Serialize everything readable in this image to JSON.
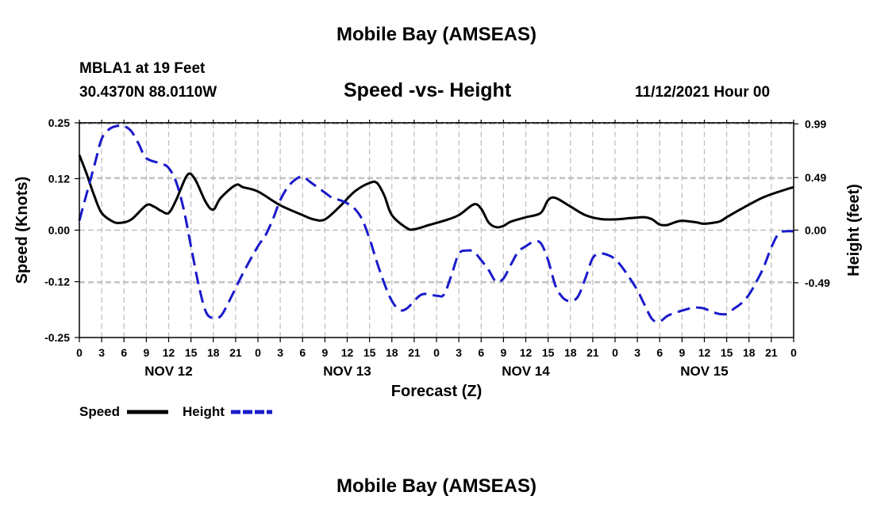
{
  "header": {
    "title": "Mobile Bay (AMSEAS)",
    "station": "MBLA1 at 19 Feet",
    "coords": "30.4370N  88.0110W",
    "subtitle": "Speed -vs- Height",
    "datetime": "11/12/2021 Hour 00"
  },
  "footer": {
    "title": "Mobile Bay (AMSEAS)"
  },
  "chart_data": {
    "type": "line",
    "title": "Speed -vs- Height",
    "xlabel": "Forecast (Z)",
    "ylabel": "Speed (Knots)",
    "y2label": "Height (feet)",
    "x_range": [
      0,
      96
    ],
    "x_hours": [
      0,
      3,
      6,
      9,
      12,
      15,
      18,
      21,
      24,
      27,
      30,
      33,
      36,
      39,
      42,
      45,
      48,
      51,
      54,
      57,
      60,
      63,
      66,
      69,
      72,
      75,
      78,
      81,
      84,
      87,
      90,
      93,
      96
    ],
    "x_tick_labels": [
      "0",
      "3",
      "6",
      "9",
      "12",
      "15",
      "18",
      "21",
      "0",
      "3",
      "6",
      "9",
      "12",
      "15",
      "18",
      "21",
      "0",
      "3",
      "6",
      "9",
      "12",
      "15",
      "18",
      "21",
      "0",
      "3",
      "6",
      "9",
      "12",
      "15",
      "18",
      "21",
      "0"
    ],
    "day_labels": [
      {
        "hour": 12,
        "label": "NOV 12"
      },
      {
        "hour": 36,
        "label": "NOV 13"
      },
      {
        "hour": 60,
        "label": "NOV 14"
      },
      {
        "hour": 84,
        "label": "NOV 15"
      }
    ],
    "ylim": [
      -0.25,
      0.25
    ],
    "y_ticks": [
      0.25,
      0.12,
      0.0,
      -0.12,
      -0.25
    ],
    "y_tick_labels": [
      "0.25",
      "0.12",
      "0.00",
      "-0.12",
      "-0.25"
    ],
    "y2lim": [
      -1.0,
      1.0
    ],
    "y2_ticks": [
      0.99,
      0.49,
      0.0,
      -0.49
    ],
    "y2_tick_labels": [
      "0.99",
      "0.49",
      "0.00",
      "-0.49"
    ],
    "grid": true,
    "legend": [
      {
        "name": "Speed",
        "color": "#000000",
        "dashed": false
      },
      {
        "name": "Height",
        "color": "#1a1acc",
        "dashed": true
      }
    ],
    "series": [
      {
        "name": "Speed",
        "axis": "left",
        "color": "#000000",
        "points": [
          [
            0,
            0.175
          ],
          [
            1,
            0.13
          ],
          [
            2,
            0.08
          ],
          [
            3,
            0.04
          ],
          [
            4.5,
            0.02
          ],
          [
            5.5,
            0.017
          ],
          [
            7,
            0.025
          ],
          [
            9,
            0.058
          ],
          [
            10,
            0.055
          ],
          [
            11,
            0.045
          ],
          [
            12,
            0.04
          ],
          [
            13,
            0.07
          ],
          [
            14.5,
            0.128
          ],
          [
            15.5,
            0.12
          ],
          [
            17,
            0.065
          ],
          [
            18,
            0.048
          ],
          [
            19,
            0.075
          ],
          [
            21,
            0.105
          ],
          [
            22,
            0.1
          ],
          [
            24,
            0.09
          ],
          [
            27,
            0.058
          ],
          [
            30,
            0.035
          ],
          [
            31.5,
            0.025
          ],
          [
            33,
            0.025
          ],
          [
            35,
            0.055
          ],
          [
            37,
            0.09
          ],
          [
            39,
            0.11
          ],
          [
            40,
            0.11
          ],
          [
            41,
            0.08
          ],
          [
            42,
            0.035
          ],
          [
            44,
            0.005
          ],
          [
            45,
            0.002
          ],
          [
            47,
            0.012
          ],
          [
            49,
            0.022
          ],
          [
            51,
            0.035
          ],
          [
            53,
            0.06
          ],
          [
            54,
            0.05
          ],
          [
            55,
            0.018
          ],
          [
            56,
            0.007
          ],
          [
            57,
            0.01
          ],
          [
            58,
            0.02
          ],
          [
            60,
            0.03
          ],
          [
            62,
            0.04
          ],
          [
            63,
            0.07
          ],
          [
            64,
            0.075
          ],
          [
            66,
            0.055
          ],
          [
            68,
            0.035
          ],
          [
            70,
            0.026
          ],
          [
            72,
            0.025
          ],
          [
            74,
            0.028
          ],
          [
            76,
            0.03
          ],
          [
            77,
            0.025
          ],
          [
            78,
            0.013
          ],
          [
            79,
            0.012
          ],
          [
            80,
            0.018
          ],
          [
            81,
            0.022
          ],
          [
            83,
            0.018
          ],
          [
            84,
            0.015
          ],
          [
            86,
            0.02
          ],
          [
            87,
            0.03
          ],
          [
            89,
            0.05
          ],
          [
            92,
            0.077
          ],
          [
            95,
            0.095
          ],
          [
            96,
            0.1
          ]
        ]
      },
      {
        "name": "Height",
        "axis": "right",
        "color": "#1a1acc",
        "points": [
          [
            0,
            0.09
          ],
          [
            2,
            0.6
          ],
          [
            3,
            0.85
          ],
          [
            4,
            0.94
          ],
          [
            5,
            0.97
          ],
          [
            6,
            0.97
          ],
          [
            7,
            0.92
          ],
          [
            8,
            0.8
          ],
          [
            9,
            0.67
          ],
          [
            11,
            0.62
          ],
          [
            12,
            0.58
          ],
          [
            13,
            0.45
          ],
          [
            14,
            0.2
          ],
          [
            15,
            -0.15
          ],
          [
            16,
            -0.5
          ],
          [
            17,
            -0.76
          ],
          [
            18,
            -0.82
          ],
          [
            19,
            -0.8
          ],
          [
            20,
            -0.68
          ],
          [
            22,
            -0.4
          ],
          [
            24,
            -0.15
          ],
          [
            25,
            -0.05
          ],
          [
            26,
            0.1
          ],
          [
            27,
            0.28
          ],
          [
            28,
            0.4
          ],
          [
            29,
            0.47
          ],
          [
            30,
            0.5
          ],
          [
            31,
            0.45
          ],
          [
            33,
            0.35
          ],
          [
            34,
            0.3
          ],
          [
            35,
            0.28
          ],
          [
            36,
            0.25
          ],
          [
            37,
            0.2
          ],
          [
            38,
            0.1
          ],
          [
            39,
            -0.08
          ],
          [
            40,
            -0.3
          ],
          [
            41,
            -0.5
          ],
          [
            42,
            -0.66
          ],
          [
            43,
            -0.74
          ],
          [
            44,
            -0.73
          ],
          [
            46,
            -0.6
          ],
          [
            48,
            -0.61
          ],
          [
            49,
            -0.6
          ],
          [
            50,
            -0.42
          ],
          [
            51,
            -0.22
          ],
          [
            52,
            -0.19
          ],
          [
            53,
            -0.2
          ],
          [
            54,
            -0.28
          ],
          [
            55,
            -0.37
          ],
          [
            56,
            -0.48
          ],
          [
            57,
            -0.45
          ],
          [
            58,
            -0.32
          ],
          [
            59,
            -0.2
          ],
          [
            60,
            -0.15
          ],
          [
            61,
            -0.11
          ],
          [
            62,
            -0.12
          ],
          [
            63,
            -0.28
          ],
          [
            64,
            -0.52
          ],
          [
            65,
            -0.63
          ],
          [
            66,
            -0.66
          ],
          [
            67,
            -0.62
          ],
          [
            68,
            -0.45
          ],
          [
            69,
            -0.26
          ],
          [
            70,
            -0.22
          ],
          [
            71,
            -0.23
          ],
          [
            72,
            -0.27
          ],
          [
            73,
            -0.35
          ],
          [
            74,
            -0.45
          ],
          [
            75,
            -0.56
          ],
          [
            76,
            -0.7
          ],
          [
            77,
            -0.83
          ],
          [
            78,
            -0.85
          ],
          [
            79,
            -0.8
          ],
          [
            80,
            -0.77
          ],
          [
            81,
            -0.75
          ],
          [
            82,
            -0.73
          ],
          [
            83,
            -0.72
          ],
          [
            84,
            -0.73
          ],
          [
            85,
            -0.76
          ],
          [
            86,
            -0.78
          ],
          [
            87,
            -0.78
          ],
          [
            88,
            -0.73
          ],
          [
            89,
            -0.68
          ],
          [
            90,
            -0.6
          ],
          [
            91,
            -0.48
          ],
          [
            92,
            -0.34
          ],
          [
            93,
            -0.16
          ],
          [
            94,
            -0.03
          ],
          [
            95,
            -0.01
          ],
          [
            96,
            -0.01
          ]
        ]
      }
    ]
  }
}
